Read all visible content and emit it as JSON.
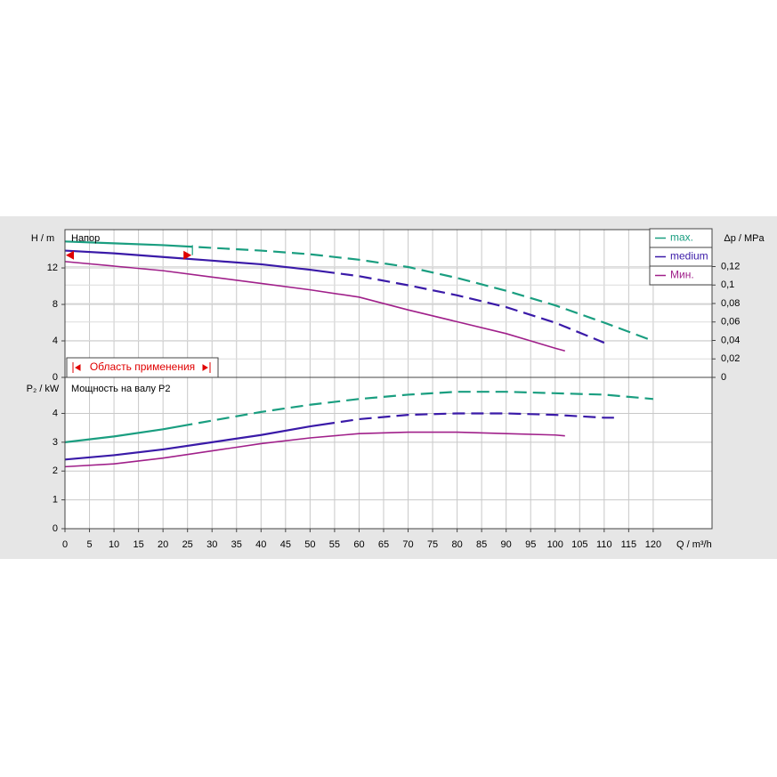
{
  "chart_data": [
    {
      "type": "line",
      "title": "Напор",
      "y_label": "H / m",
      "y2_label": "Δp / MPa",
      "xlim": [
        0,
        132
      ],
      "ylim": [
        0,
        16.2
      ],
      "yticks": [
        0,
        4,
        8,
        12
      ],
      "y2lim": [
        0,
        0.16
      ],
      "y2ticks": [
        0,
        {
          "value": 0.02,
          "label": "0,02"
        },
        {
          "value": 0.04,
          "label": "0,04"
        },
        {
          "value": 0.06,
          "label": "0,06"
        },
        {
          "value": 0.08,
          "label": "0,08"
        },
        {
          "value": 0.1,
          "label": "0,1"
        },
        {
          "value": 0.12,
          "label": "0,12"
        }
      ],
      "grid": true,
      "legend": "top-right",
      "application_range": {
        "label": "Область применения",
        "x": [
          0,
          26
        ],
        "h": 13.4
      },
      "series": [
        {
          "name": "max.",
          "color": "#1a9e80",
          "dashed_from": 26,
          "x": [
            0,
            10,
            20,
            30,
            40,
            50,
            60,
            70,
            80,
            90,
            100,
            110,
            120
          ],
          "values": [
            14.9,
            14.7,
            14.5,
            14.2,
            13.9,
            13.5,
            12.9,
            12.1,
            10.9,
            9.5,
            7.9,
            6.0,
            4.0
          ]
        },
        {
          "name": "medium",
          "color": "#3a1aa8",
          "dashed_from": 55,
          "x": [
            0,
            10,
            20,
            30,
            40,
            50,
            60,
            70,
            80,
            90,
            100,
            110
          ],
          "values": [
            13.9,
            13.6,
            13.2,
            12.8,
            12.4,
            11.8,
            11.1,
            10.1,
            9.0,
            7.7,
            6.0,
            3.8
          ]
        },
        {
          "name": "Мин.",
          "color": "#a0208a",
          "x": [
            0,
            10,
            20,
            30,
            40,
            50,
            60,
            70,
            80,
            90,
            100,
            102
          ],
          "values": [
            12.7,
            12.2,
            11.7,
            11.0,
            10.3,
            9.6,
            8.8,
            7.4,
            6.1,
            4.8,
            3.2,
            2.9
          ]
        }
      ]
    },
    {
      "type": "line",
      "title": "Мощность на валу P2",
      "y_label": "P₂ / kW",
      "x_label": "Q / m³/h",
      "xlim": [
        0,
        132
      ],
      "xticks": [
        0,
        5,
        10,
        15,
        20,
        25,
        30,
        35,
        40,
        45,
        50,
        55,
        60,
        65,
        70,
        75,
        80,
        85,
        90,
        95,
        100,
        105,
        110,
        115,
        120
      ],
      "ylim": [
        0,
        5.25
      ],
      "yticks": [
        0,
        1,
        2,
        3,
        4
      ],
      "grid": true,
      "series": [
        {
          "color": "#1a9e80",
          "dashed_from": 26,
          "x": [
            0,
            10,
            20,
            30,
            40,
            50,
            60,
            70,
            80,
            90,
            100,
            110,
            120
          ],
          "values": [
            3.0,
            3.2,
            3.45,
            3.75,
            4.05,
            4.3,
            4.5,
            4.65,
            4.75,
            4.75,
            4.7,
            4.65,
            4.5
          ]
        },
        {
          "color": "#3a1aa8",
          "dashed_from": 55,
          "x": [
            0,
            10,
            20,
            30,
            40,
            50,
            60,
            70,
            80,
            90,
            100,
            110,
            112
          ],
          "values": [
            2.4,
            2.55,
            2.75,
            3.0,
            3.25,
            3.55,
            3.8,
            3.95,
            4.0,
            4.0,
            3.95,
            3.85,
            3.85
          ]
        },
        {
          "color": "#a0208a",
          "x": [
            0,
            10,
            20,
            30,
            40,
            50,
            60,
            70,
            80,
            90,
            100,
            102
          ],
          "values": [
            2.15,
            2.25,
            2.45,
            2.7,
            2.95,
            3.15,
            3.3,
            3.35,
            3.35,
            3.3,
            3.25,
            3.22
          ]
        }
      ]
    }
  ]
}
